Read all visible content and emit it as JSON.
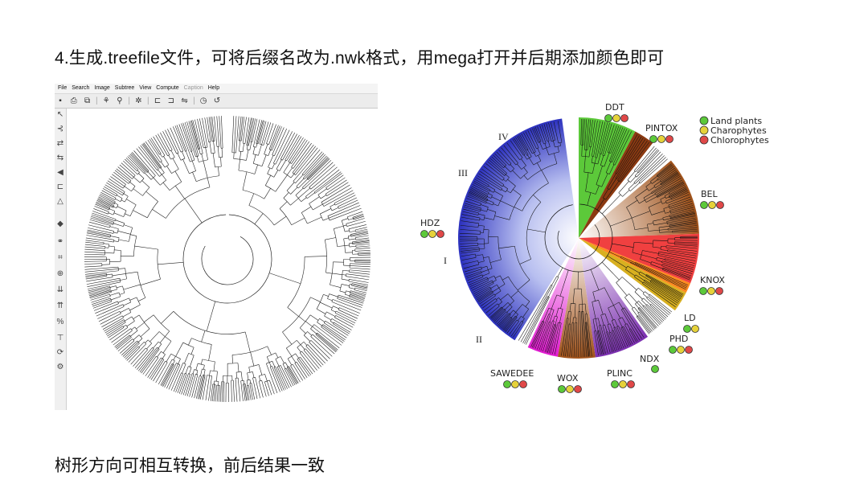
{
  "heading": "4.生成.treefile文件，可将后缀名改为.nwk格式，用mega打开并后期添加颜色即可",
  "footer": "树形方向可相互转换，前后结果一致",
  "mega": {
    "menu": [
      {
        "label": "File",
        "enabled": true
      },
      {
        "label": "Search",
        "enabled": true
      },
      {
        "label": "Image",
        "enabled": true
      },
      {
        "label": "Subtree",
        "enabled": true
      },
      {
        "label": "View",
        "enabled": true
      },
      {
        "label": "Compute",
        "enabled": true
      },
      {
        "label": "Caption",
        "enabled": false
      },
      {
        "label": "Help",
        "enabled": true
      }
    ],
    "toolbar_icons": [
      "save-icon",
      "print-icon",
      "copy-icon",
      "tree-style-icon",
      "topology-icon",
      "root-icon",
      "subtree-icon",
      "compress-icon",
      "swap-icon",
      "clock-icon",
      "undo-icon"
    ],
    "side_icons": [
      "pointer-icon",
      "root-tool-icon",
      "flip-icon",
      "swap-tool-icon",
      "compress-tool-icon",
      "add-caption-icon",
      "scale-icon",
      "color-icon",
      "find-icon",
      "zoom-icon",
      "mark-icon",
      "collapse-icon",
      "expand-icon",
      "percent-icon",
      "branch-icon",
      "gear-icon",
      "refresh-icon"
    ]
  },
  "colored_tree": {
    "legend": [
      {
        "label": "Land plants",
        "color": "#5cc93a"
      },
      {
        "label": "Charophytes",
        "color": "#e6d23a"
      },
      {
        "label": "Chlorophytes",
        "color": "#e04848"
      }
    ],
    "clades": [
      {
        "name": "DDT",
        "dots": [
          "#5cc93a",
          "#e6d23a",
          "#e04848"
        ]
      },
      {
        "name": "PINTOX",
        "dots": [
          "#5cc93a",
          "#e6d23a",
          "#e04848"
        ]
      },
      {
        "name": "BEL",
        "dots": [
          "#5cc93a",
          "#e6d23a",
          "#e04848"
        ]
      },
      {
        "name": "KNOX",
        "dots": [
          "#5cc93a",
          "#e6d23a",
          "#e04848"
        ]
      },
      {
        "name": "LD",
        "dots": [
          "#5cc93a",
          "#e6d23a"
        ]
      },
      {
        "name": "PHD",
        "dots": [
          "#5cc93a",
          "#e6d23a",
          "#e04848"
        ]
      },
      {
        "name": "NDX",
        "dots": [
          "#5cc93a"
        ]
      },
      {
        "name": "PLINC",
        "dots": [
          "#5cc93a",
          "#e6d23a",
          "#e04848"
        ]
      },
      {
        "name": "WOX",
        "dots": [
          "#5cc93a",
          "#e6d23a",
          "#e04848"
        ]
      },
      {
        "name": "SAWEDEE",
        "dots": [
          "#5cc93a",
          "#e6d23a",
          "#e04848"
        ]
      },
      {
        "name": "HDZ",
        "dots": [
          "#5cc93a",
          "#e6d23a",
          "#e04848"
        ]
      }
    ],
    "subgroups": [
      "IV",
      "III",
      "I",
      "II"
    ]
  }
}
